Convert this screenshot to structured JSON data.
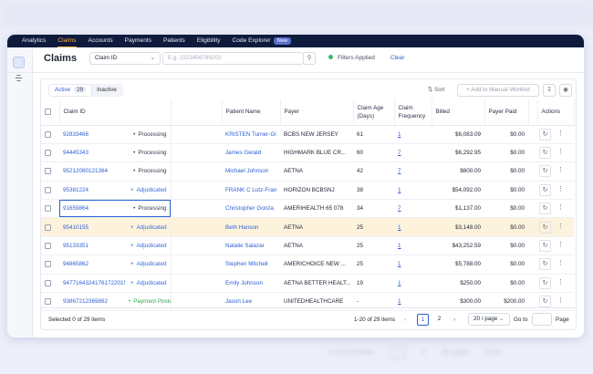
{
  "nav": {
    "tabs": [
      "Analytics",
      "Claims",
      "Accounts",
      "Payments",
      "Patients",
      "Eligibility",
      "Code Explorer"
    ],
    "active_tab": "Claims",
    "badge": "New"
  },
  "header": {
    "title": "Claims",
    "filter_field": "Claim ID",
    "search_placeholder": "E.g. 2323456789203",
    "filters_status": "Filters Applied",
    "clear": "Clear"
  },
  "toolbar": {
    "tabs": [
      {
        "label": "Active",
        "count": 29
      },
      {
        "label": "Inactive"
      }
    ],
    "sort": "Sort",
    "add_button": "+ Add to Manual Worklist"
  },
  "table": {
    "columns": [
      "Claim ID",
      "Patient Name",
      "Payer",
      "Claim Age (Days)",
      "Claim Frequency",
      "Billed",
      "Payer Paid",
      "Actions"
    ],
    "rows": [
      [
        "92833466",
        "Processing",
        "KRISTEN Turner-Gi",
        "BCBS NEW JERSEY",
        61,
        1,
        "$6,083.09",
        "$0.00"
      ],
      [
        "94445343",
        "Processing",
        "James Gerald",
        "HIGHMARK BLUE CR...",
        60,
        7,
        "$6,292.95",
        "$0.00"
      ],
      [
        "95212080121364",
        "Processing",
        "Michael Johnson",
        "AETNA",
        42,
        7,
        "$600.00",
        "$0.00"
      ],
      [
        "95381224",
        "Adjudicated",
        "FRANK C Lutz-Fran",
        "HORIZON BCBSNJ",
        38,
        1,
        "$54,092.00",
        "$0.00"
      ],
      [
        "91659864",
        "Processing",
        "Christopher Gonza",
        "AMERIHEALTH 65 078",
        34,
        7,
        "$1,137.00",
        "$0.00"
      ],
      [
        "95410155",
        "Adjudicated",
        "Beth Hanson",
        "AETNA",
        25,
        1,
        "$3,148.00",
        "$0.00"
      ],
      [
        "95133351",
        "Adjudicated",
        "Natalie Salazar",
        "AETNA",
        25,
        1,
        "$43,252.59",
        "$0.00"
      ],
      [
        "94865862",
        "Adjudicated",
        "Stephen Mitchell",
        "AMERICHOICE NEW ...",
        25,
        1,
        "$5,788.00",
        "$0.00"
      ],
      [
        "94771643241761722015",
        "Adjudicated",
        "Emily Johnson",
        "AETNA BETTER HEALT...",
        19,
        1,
        "$250.00",
        "$0.00"
      ],
      [
        "93867212369862",
        "Payment Posted",
        "Jason Lee",
        "UNITEDHEALTHCARE",
        "-",
        1,
        "$300.00",
        "$200.00"
      ]
    ]
  },
  "footer": {
    "selected": "Selected 0 of 29 items",
    "range": "1-20 of 29 items",
    "pages": [
      1,
      2
    ],
    "page_size": "20 / page",
    "goto": "Go to",
    "page": "Page"
  }
}
